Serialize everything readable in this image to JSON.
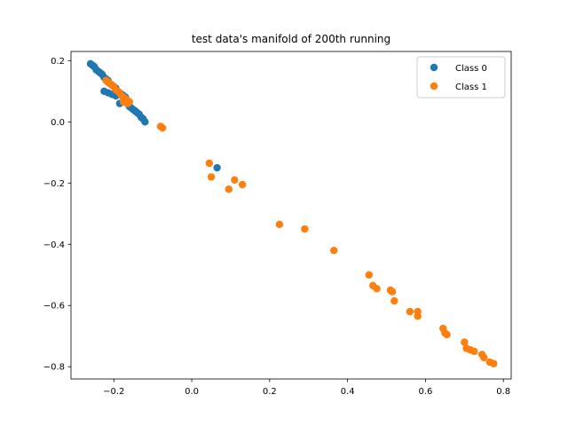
{
  "chart_data": {
    "type": "scatter",
    "title": "test data's manifold of 200th running",
    "xlabel": "",
    "ylabel": "",
    "xlim": [
      -0.31,
      0.82
    ],
    "ylim": [
      -0.84,
      0.23
    ],
    "xticks": [
      -0.2,
      0.0,
      0.2,
      0.4,
      0.6,
      0.8
    ],
    "xtick_labels": [
      "−0.2",
      "0.0",
      "0.2",
      "0.4",
      "0.6",
      "0.8"
    ],
    "yticks": [
      0.2,
      0.0,
      -0.2,
      -0.4,
      -0.6,
      -0.8
    ],
    "ytick_labels": [
      "0.2",
      "0.0",
      "−0.2",
      "−0.4",
      "−0.6",
      "−0.8"
    ],
    "grid": false,
    "legend_position": "top-right",
    "series": [
      {
        "name": "Class 0",
        "color": "#1f77b4",
        "points": [
          [
            -0.26,
            0.19
          ],
          [
            -0.255,
            0.185
          ],
          [
            -0.25,
            0.18
          ],
          [
            -0.245,
            0.17
          ],
          [
            -0.24,
            0.165
          ],
          [
            -0.235,
            0.16
          ],
          [
            -0.23,
            0.155
          ],
          [
            -0.225,
            0.145
          ],
          [
            -0.22,
            0.14
          ],
          [
            -0.215,
            0.135
          ],
          [
            -0.21,
            0.125
          ],
          [
            -0.205,
            0.12
          ],
          [
            -0.2,
            0.115
          ],
          [
            -0.195,
            0.11
          ],
          [
            -0.19,
            0.1
          ],
          [
            -0.185,
            0.095
          ],
          [
            -0.18,
            0.09
          ],
          [
            -0.175,
            0.085
          ],
          [
            -0.17,
            0.08
          ],
          [
            -0.175,
            0.065
          ],
          [
            -0.165,
            0.06
          ],
          [
            -0.16,
            0.05
          ],
          [
            -0.155,
            0.045
          ],
          [
            -0.15,
            0.04
          ],
          [
            -0.145,
            0.035
          ],
          [
            -0.14,
            0.03
          ],
          [
            -0.135,
            0.025
          ],
          [
            -0.13,
            0.015
          ],
          [
            -0.125,
            0.01
          ],
          [
            -0.12,
            0.0
          ],
          [
            -0.225,
            0.1
          ],
          [
            -0.215,
            0.095
          ],
          [
            -0.205,
            0.09
          ],
          [
            -0.195,
            0.085
          ],
          [
            -0.185,
            0.06
          ],
          [
            0.065,
            -0.15
          ]
        ]
      },
      {
        "name": "Class 1",
        "color": "#ff7f0e",
        "points": [
          [
            -0.22,
            0.135
          ],
          [
            -0.215,
            0.13
          ],
          [
            -0.21,
            0.125
          ],
          [
            -0.205,
            0.12
          ],
          [
            -0.2,
            0.115
          ],
          [
            -0.195,
            0.105
          ],
          [
            -0.19,
            0.1
          ],
          [
            -0.185,
            0.095
          ],
          [
            -0.18,
            0.085
          ],
          [
            -0.175,
            0.08
          ],
          [
            -0.17,
            0.075
          ],
          [
            -0.165,
            0.07
          ],
          [
            -0.16,
            0.065
          ],
          [
            -0.175,
            0.065
          ],
          [
            -0.165,
            0.06
          ],
          [
            -0.08,
            -0.015
          ],
          [
            -0.075,
            -0.02
          ],
          [
            0.045,
            -0.135
          ],
          [
            0.05,
            -0.18
          ],
          [
            0.095,
            -0.22
          ],
          [
            0.11,
            -0.19
          ],
          [
            0.13,
            -0.205
          ],
          [
            0.225,
            -0.335
          ],
          [
            0.29,
            -0.35
          ],
          [
            0.365,
            -0.42
          ],
          [
            0.455,
            -0.5
          ],
          [
            0.465,
            -0.535
          ],
          [
            0.475,
            -0.545
          ],
          [
            0.51,
            -0.55
          ],
          [
            0.515,
            -0.555
          ],
          [
            0.52,
            -0.585
          ],
          [
            0.56,
            -0.62
          ],
          [
            0.58,
            -0.62
          ],
          [
            0.58,
            -0.635
          ],
          [
            0.645,
            -0.675
          ],
          [
            0.65,
            -0.69
          ],
          [
            0.655,
            -0.695
          ],
          [
            0.7,
            -0.72
          ],
          [
            0.705,
            -0.74
          ],
          [
            0.715,
            -0.745
          ],
          [
            0.725,
            -0.75
          ],
          [
            0.745,
            -0.76
          ],
          [
            0.75,
            -0.77
          ],
          [
            0.765,
            -0.785
          ],
          [
            0.775,
            -0.79
          ]
        ]
      }
    ]
  }
}
